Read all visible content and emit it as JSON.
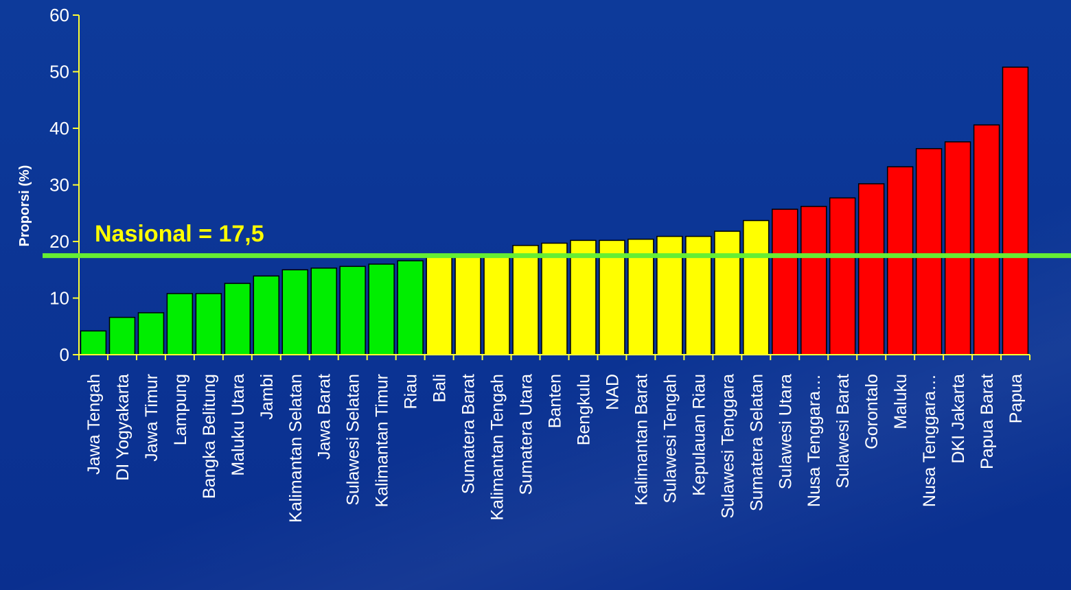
{
  "chart_data": {
    "type": "bar",
    "ylabel": "Proporsi (%)",
    "ylim": [
      0,
      60
    ],
    "yticks": [
      0,
      10,
      20,
      30,
      40,
      50,
      60
    ],
    "categories": [
      "Jawa Tengah",
      "DI Yogyakarta",
      "Jawa Timur",
      "Lampung",
      "Bangka Belitung",
      "Maluku Utara",
      "Jambi",
      "Kalimantan Selatan",
      "Jawa Barat",
      "Sulawesi Selatan",
      "Kalimantan Timur",
      "Riau",
      "Bali",
      "Sumatera Barat",
      "Kalimantan Tengah",
      "Sumatera Utara",
      "Banten",
      "Bengkulu",
      "NAD",
      "Kalimantan Barat",
      "Sulawesi Tengah",
      "Kepulauan Riau",
      "Sulawesi Tenggara",
      "Sumatera Selatan",
      "Sulawesi Utara",
      "Nusa Tenggara…",
      "Sulawesi Barat",
      "Gorontalo",
      "Maluku",
      "Nusa Tenggara…",
      "DKI Jakarta",
      "Papua Barat",
      "Papua"
    ],
    "values": [
      4.2,
      6.6,
      7.4,
      10.8,
      10.8,
      12.6,
      13.9,
      15.0,
      15.3,
      15.6,
      16.0,
      16.6,
      17.2,
      17.6,
      17.8,
      19.3,
      19.7,
      20.2,
      20.2,
      20.4,
      20.9,
      20.9,
      21.8,
      23.7,
      25.7,
      26.2,
      27.7,
      30.2,
      33.2,
      36.4,
      37.6,
      40.6,
      50.8
    ],
    "bar_colors": [
      "#00ee00",
      "#00ee00",
      "#00ee00",
      "#00ee00",
      "#00ee00",
      "#00ee00",
      "#00ee00",
      "#00ee00",
      "#00ee00",
      "#00ee00",
      "#00ee00",
      "#00ee00",
      "#ffff00",
      "#ffff00",
      "#ffff00",
      "#ffff00",
      "#ffff00",
      "#ffff00",
      "#ffff00",
      "#ffff00",
      "#ffff00",
      "#ffff00",
      "#ffff00",
      "#ffff00",
      "#ff0000",
      "#ff0000",
      "#ff0000",
      "#ff0000",
      "#ff0000",
      "#ff0000",
      "#ff0000",
      "#ff0000",
      "#ff0000"
    ],
    "reference_line": {
      "value": 17.5,
      "label": "Nasional = 17,5",
      "color": "#66ee33"
    },
    "grid": false,
    "legend": "none"
  },
  "colors": {
    "background": "#0a2f8f",
    "axis": "#ffff33",
    "text": "#ffffff",
    "annotation": "#ffff00"
  }
}
